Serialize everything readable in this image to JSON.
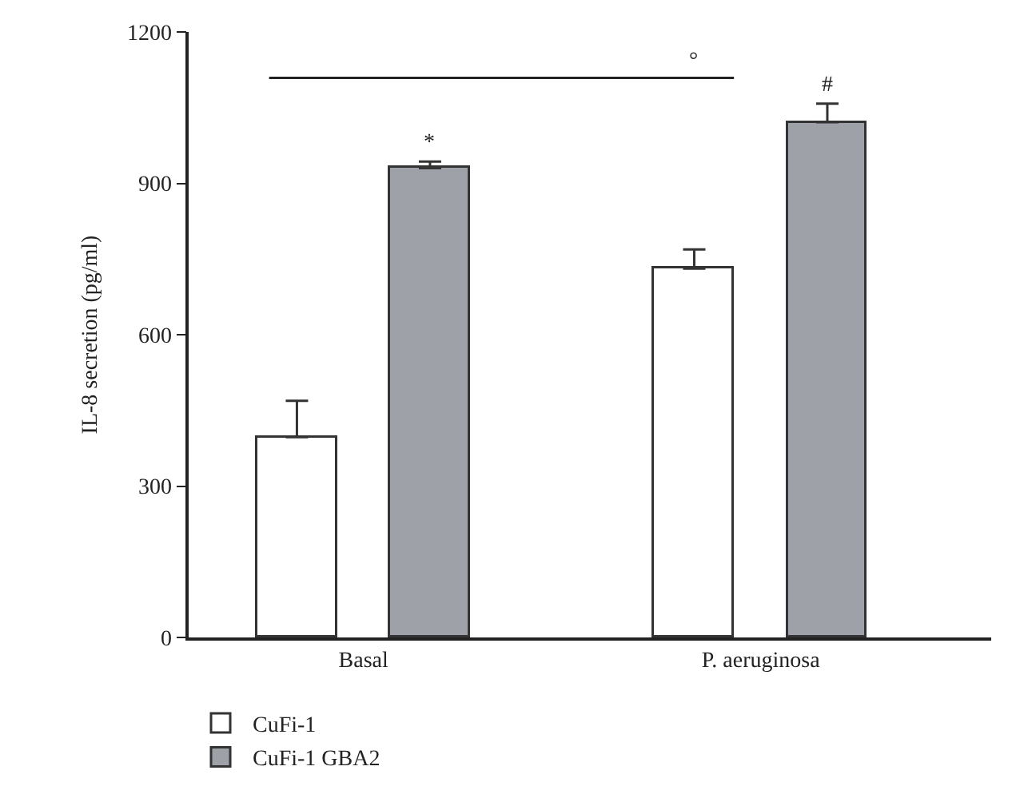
{
  "chart_data": {
    "type": "bar",
    "ylabel": "IL-8 secretion (pg/ml)",
    "categories": [
      "Basal",
      "P. aeruginosa"
    ],
    "series": [
      {
        "name": "CuFi-1",
        "color": "#ffffff",
        "values": [
          397,
          731
        ],
        "errors": [
          [
            397,
            469
          ],
          [
            731,
            769
          ]
        ]
      },
      {
        "name": "CuFi-1 GBA2",
        "color": "#9ea1a7",
        "values": [
          930,
          1021
        ],
        "errors": [
          [
            930,
            943
          ],
          [
            1021,
            1058
          ]
        ]
      }
    ],
    "ylim": [
      0,
      1200
    ],
    "yticks": [
      0,
      300,
      600,
      900,
      1200
    ],
    "legend": "bottom left",
    "ref_lines": [
      {
        "axis": "y",
        "value": 1109,
        "label": "°",
        "color": "#222222"
      }
    ],
    "annotations": [
      "*",
      "#"
    ]
  }
}
